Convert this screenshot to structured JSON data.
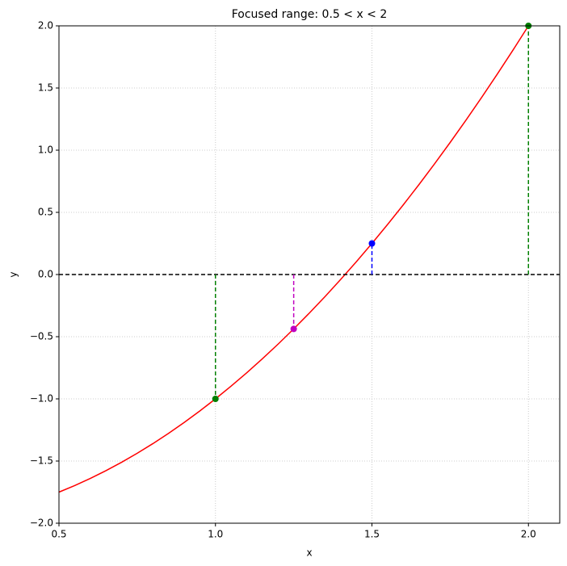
{
  "chart_data": {
    "type": "line",
    "title": "Focused range: 0.5 < x < 2",
    "x_label": "x",
    "y_label": "y",
    "x": [
      0.5,
      0.55,
      0.6,
      0.65,
      0.7,
      0.75,
      0.8,
      0.85,
      0.9,
      0.95,
      1.0,
      1.05,
      1.1,
      1.15,
      1.2,
      1.25,
      1.3,
      1.35,
      1.4,
      1.45,
      1.5,
      1.55,
      1.6,
      1.65,
      1.7,
      1.75,
      1.8,
      1.85,
      1.9,
      1.95,
      2.0
    ],
    "series": [
      {
        "color": "#ff0000",
        "values": [
          -1.75,
          -1.6975,
          -1.64,
          -1.5775,
          -1.51,
          -1.4375,
          -1.36,
          -1.2775,
          -1.19,
          -1.0975,
          -1,
          -0.8975,
          -0.79,
          -0.6775,
          -0.56,
          -0.4375,
          -0.31,
          -0.1775,
          -0.04,
          0.1025,
          0.25,
          0.4025,
          0.56,
          0.7225,
          0.89,
          1.0625,
          1.24,
          1.4225,
          1.61,
          1.8025,
          2
        ]
      }
    ],
    "points": {
      "x": [
        1,
        1.25,
        1.5,
        2
      ],
      "y": [
        -1,
        -0.4375,
        0.25,
        2
      ],
      "colors": [
        "#008000",
        "#c000c0",
        "#0000ff",
        "#008000"
      ]
    },
    "hline": {
      "y": 0,
      "color": "#000000"
    },
    "xlim": [
      0.5,
      2.1
    ],
    "ylim": [
      -2,
      2
    ],
    "xticks": [
      0.5,
      {
        "value": 1,
        "label": "1.0"
      },
      1.5,
      {
        "value": 2,
        "label": "2.0"
      }
    ],
    "yticks": [
      {
        "value": -2,
        "label": "−2.0"
      },
      {
        "value": -1.5,
        "label": "−1.5"
      },
      {
        "value": -1,
        "label": "−1.0"
      },
      {
        "value": -0.5,
        "label": "−0.5"
      },
      {
        "value": 0,
        "label": "0.0"
      },
      0.5,
      {
        "value": 1,
        "label": "1.0"
      },
      1.5,
      {
        "value": 2,
        "label": "2.0"
      }
    ],
    "grid": true
  }
}
